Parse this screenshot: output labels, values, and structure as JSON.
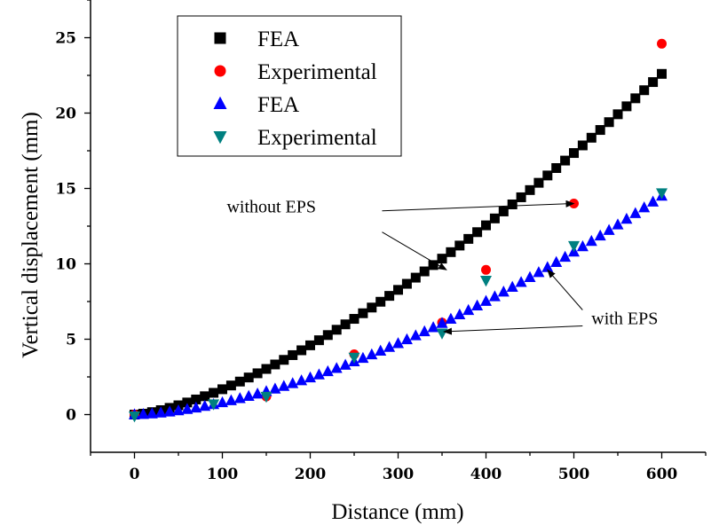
{
  "chart_data": {
    "type": "scatter",
    "title": "",
    "xlabel": "Distance (mm)",
    "ylabel": "Vertical displacement (mm)",
    "xlim": [
      -50,
      650
    ],
    "ylim": [
      -2.5,
      27.5
    ],
    "xticks": [
      0,
      100,
      200,
      300,
      400,
      500,
      600
    ],
    "yticks": [
      0,
      5,
      10,
      15,
      20,
      25
    ],
    "legend_position": "top-left",
    "grid": false,
    "series": [
      {
        "name": "FEA",
        "marker": "square",
        "color": "#000000",
        "line": {
          "exponent": 1.45,
          "y_at_600": 22.6,
          "x_start": 0,
          "x_end": 600,
          "step": 10
        }
      },
      {
        "name": "Experimental",
        "marker": "circle",
        "color": "#ff0000",
        "points": [
          [
            0,
            0
          ],
          [
            150,
            1.2
          ],
          [
            250,
            4.0
          ],
          [
            350,
            6.1
          ],
          [
            400,
            9.6
          ],
          [
            500,
            14.0
          ],
          [
            600,
            24.6
          ]
        ]
      },
      {
        "name": "FEA",
        "marker": "triangle-up",
        "color": "#0000ff",
        "line": {
          "exponent": 1.62,
          "y_at_600": 14.5,
          "x_start": 0,
          "x_end": 600,
          "step": 10
        }
      },
      {
        "name": "Experimental",
        "marker": "triangle-down",
        "color": "#008080",
        "points": [
          [
            0,
            -0.1
          ],
          [
            90,
            0.7
          ],
          [
            150,
            1.2
          ],
          [
            250,
            3.8
          ],
          [
            350,
            5.4
          ],
          [
            400,
            8.9
          ],
          [
            500,
            11.2
          ],
          [
            600,
            14.7
          ]
        ]
      }
    ],
    "annotations": [
      {
        "text": "without EPS",
        "x": 105,
        "y": 13.4,
        "arrows": [
          [
            500,
            14.0
          ],
          [
            355,
            9.6
          ]
        ]
      },
      {
        "text": "with EPS",
        "x": 520,
        "y": 6.0,
        "arrows": [
          [
            470,
            9.6
          ],
          [
            352,
            5.5
          ]
        ]
      }
    ]
  }
}
